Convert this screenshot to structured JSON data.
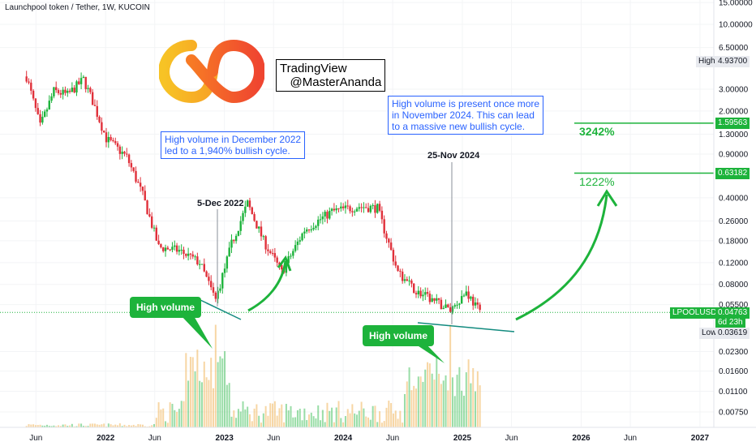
{
  "chart_title": "Launchpool token / Tether, 1W, KUCOIN",
  "watermark": {
    "line1": "TradingView",
    "line2": "@MasterAnanda"
  },
  "annotations": {
    "dec2022_note": "High volume in December 2022\nled to a 1,940% bullish cycle.",
    "nov2024_note": "High volume is present once more\nin November 2024. This can lead\nto a massive new bullish cycle.",
    "date_dec": "5-Dec 2022",
    "date_nov": "25-Nov 2024",
    "callout_left": "High volume",
    "callout_right": "High volume",
    "pct_high": "3242%",
    "pct_low": "1222%"
  },
  "price_tags": {
    "high_label": "High",
    "high_value": "4.93700",
    "symbol": "LPOOLUSDT",
    "current": "0.04763",
    "countdown": "6d 23h",
    "low_label": "Low",
    "low_value": "0.03619",
    "target_1": "1.59563",
    "target_2": "0.63182"
  },
  "colors": {
    "up": "#1db33b",
    "down": "#e0303a",
    "annotation": "#2962ff",
    "target_line": "#1db33b",
    "trendline": "#138b7f"
  },
  "chart_data": {
    "type": "candlestick",
    "y_scale": "log",
    "y_tick_labels": [
      "15.00000",
      "10.00000",
      "6.50000",
      "3.00000",
      "2.00000",
      "1.30000",
      "0.90000",
      "0.40000",
      "0.26000",
      "0.18000",
      "0.12000",
      "0.08000",
      "0.05500",
      "0.02300",
      "0.01600",
      "0.01100",
      "0.00750"
    ],
    "x_tick_labels": [
      "Jun",
      "2022",
      "Jun",
      "2023",
      "Jun",
      "2024",
      "Jun",
      "2025",
      "Jun",
      "2026",
      "Jun",
      "2027"
    ],
    "price_anchors": [
      {
        "date": "2021-05-03",
        "price": 3.8
      },
      {
        "date": "2021-06-14",
        "price": 1.5
      },
      {
        "date": "2021-07-26",
        "price": 2.9
      },
      {
        "date": "2021-09-06",
        "price": 2.7
      },
      {
        "date": "2021-10-25",
        "price": 3.6
      },
      {
        "date": "2021-11-22",
        "price": 2.4
      },
      {
        "date": "2022-01-03",
        "price": 1.2
      },
      {
        "date": "2022-03-07",
        "price": 0.85
      },
      {
        "date": "2022-04-25",
        "price": 0.42
      },
      {
        "date": "2022-06-13",
        "price": 0.16
      },
      {
        "date": "2022-08-15",
        "price": 0.15
      },
      {
        "date": "2022-10-17",
        "price": 0.12
      },
      {
        "date": "2022-12-05",
        "price": 0.06
      },
      {
        "date": "2023-01-23",
        "price": 0.17
      },
      {
        "date": "2023-03-13",
        "price": 0.36
      },
      {
        "date": "2023-05-01",
        "price": 0.18
      },
      {
        "date": "2023-06-26",
        "price": 0.1
      },
      {
        "date": "2023-09-04",
        "price": 0.22
      },
      {
        "date": "2023-11-27",
        "price": 0.31
      },
      {
        "date": "2024-02-19",
        "price": 0.34
      },
      {
        "date": "2024-04-15",
        "price": 0.33
      },
      {
        "date": "2024-06-17",
        "price": 0.1
      },
      {
        "date": "2024-08-12",
        "price": 0.07
      },
      {
        "date": "2024-11-25",
        "price": 0.05
      },
      {
        "date": "2025-01-13",
        "price": 0.07
      },
      {
        "date": "2025-02-24",
        "price": 0.04763
      }
    ],
    "volume_spikes": [
      {
        "date": "2022-12-05",
        "level": "high"
      },
      {
        "date": "2024-11-25",
        "level": "high"
      }
    ],
    "target_levels": [
      1.59563,
      0.63182
    ],
    "range_high": 4.937,
    "range_low": 0.03619
  }
}
